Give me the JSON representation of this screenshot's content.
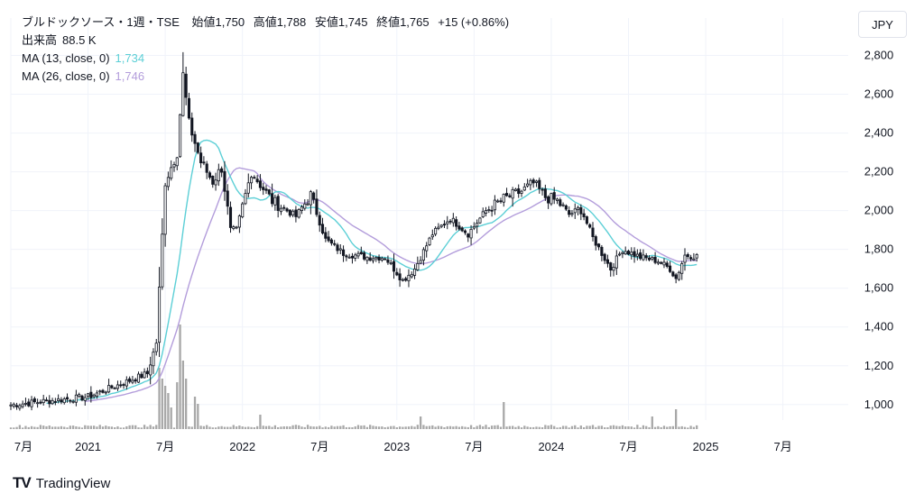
{
  "header": {
    "title": "ブルドックソース・1週・TSE",
    "ohlc": [
      {
        "label": "始値",
        "value": "1,750"
      },
      {
        "label": "高値",
        "value": "1,788"
      },
      {
        "label": "安値",
        "value": "1,745"
      },
      {
        "label": "終値",
        "value": "1,765"
      }
    ],
    "change": "+15 (+0.86%)"
  },
  "volume": {
    "label": "出来高",
    "value": "88.5 K"
  },
  "ma_indicators": [
    {
      "label": "MA (13, close, 0)",
      "value": "1,734",
      "color": "#5ccfd6"
    },
    {
      "label": "MA (26, close, 0)",
      "value": "1,746",
      "color": "#b39ddb"
    }
  ],
  "currency_button": "JPY",
  "brand": {
    "logo": "TV",
    "name": "TradingView"
  },
  "colors": {
    "up": "#ffffff",
    "down": "#131722",
    "wick": "#131722",
    "volume": "#a8a8a8",
    "grid": "#f0f3fa",
    "axis_text": "#131722"
  },
  "chart_data": {
    "type": "candlestick",
    "interval": "1 week",
    "x_ticks": [
      "7月",
      "2021",
      "7月",
      "2022",
      "7月",
      "2023",
      "7月",
      "2024",
      "7月",
      "2025",
      "7月"
    ],
    "y_ticks": [
      "1,000",
      "1,200",
      "1,400",
      "1,600",
      "1,800",
      "2,000",
      "2,200",
      "2,400",
      "2,600",
      "2,800"
    ],
    "ylim": [
      920,
      2900
    ],
    "x_range": {
      "start_week": -26,
      "end_week": 256
    },
    "close_anchors": [
      [
        0,
        1040
      ],
      [
        20,
        1160
      ],
      [
        23,
        1320
      ],
      [
        26,
        2150
      ],
      [
        30,
        2300
      ],
      [
        32,
        2700
      ],
      [
        34,
        2450
      ],
      [
        38,
        2250
      ],
      [
        42,
        2150
      ],
      [
        45,
        2220
      ],
      [
        48,
        1900
      ],
      [
        50,
        1900
      ],
      [
        55,
        2200
      ],
      [
        62,
        2050
      ],
      [
        70,
        1970
      ],
      [
        75,
        2080
      ],
      [
        80,
        1850
      ],
      [
        86,
        1780
      ],
      [
        94,
        1760
      ],
      [
        100,
        1760
      ],
      [
        106,
        1640
      ],
      [
        110,
        1700
      ],
      [
        116,
        1880
      ],
      [
        122,
        1960
      ],
      [
        128,
        1880
      ],
      [
        134,
        2000
      ],
      [
        140,
        2060
      ],
      [
        146,
        2100
      ],
      [
        150,
        2140
      ],
      [
        154,
        2070
      ],
      [
        158,
        2050
      ],
      [
        162,
        1980
      ],
      [
        166,
        2010
      ],
      [
        170,
        1860
      ],
      [
        176,
        1700
      ],
      [
        180,
        1800
      ],
      [
        186,
        1760
      ],
      [
        192,
        1740
      ],
      [
        196,
        1700
      ],
      [
        198,
        1650
      ],
      [
        201,
        1770
      ],
      [
        205,
        1765
      ]
    ],
    "volume_spikes": [
      {
        "week": 24,
        "k": 170
      },
      {
        "week": 25,
        "k": 140
      },
      {
        "week": 26,
        "k": 120
      },
      {
        "week": 27,
        "k": 100
      },
      {
        "week": 28,
        "k": 60
      },
      {
        "week": 30,
        "k": 130
      },
      {
        "week": 31,
        "k": 290
      },
      {
        "week": 32,
        "k": 190
      },
      {
        "week": 33,
        "k": 140
      },
      {
        "week": 36,
        "k": 90
      },
      {
        "week": 37,
        "k": 70
      },
      {
        "week": 58,
        "k": 40
      },
      {
        "week": 112,
        "k": 35
      },
      {
        "week": 140,
        "k": 75
      },
      {
        "week": 190,
        "k": 35
      },
      {
        "week": 198,
        "k": 55
      }
    ]
  }
}
